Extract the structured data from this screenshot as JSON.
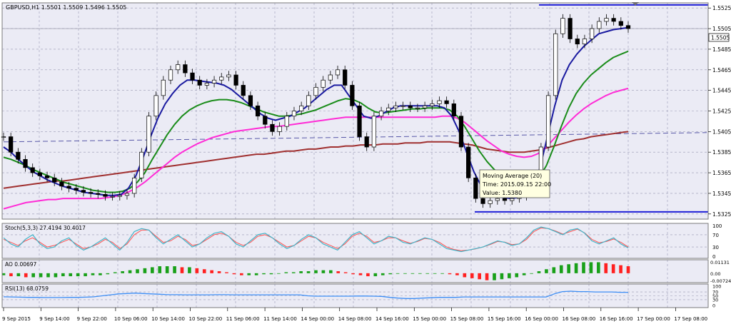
{
  "colors": {
    "background": "#ffffff",
    "plot_bg": "#ebebf5",
    "grid": "#9a9ab4",
    "candle_body": "#ffffff",
    "candle_line": "#000000",
    "ma_fast": "#1a1aa0",
    "ma_medium": "#1a8c1a",
    "ma_slow": "#ff2bd6",
    "ma_long": "#a03030",
    "support_resistance": "#1f1fd6",
    "dashed_trend": "#5858a8",
    "stoch_main": "#40b4c8",
    "stoch_signal": "#ff5050",
    "ao_up": "#19a019",
    "ao_down": "#ff2020",
    "rsi_line": "#3d8ef5",
    "text": "#000000"
  },
  "chart": {
    "symbol_label": "GBPUSD,H1  1.5501 1.5509 1.5496 1.5505",
    "current_price": "1.5505",
    "price_ticks": [
      "1.5525",
      "1.5505",
      "1.5485",
      "1.5465",
      "1.5445",
      "1.5425",
      "1.5405",
      "1.5385",
      "1.5365",
      "1.5345",
      "1.5325"
    ],
    "time_ticks": [
      "9 Sep 2015",
      "9 Sep 14:00",
      "9 Sep 22:00",
      "10 Sep 06:00",
      "10 Sep 14:00",
      "10 Sep 22:00",
      "11 Sep 06:00",
      "11 Sep 14:00",
      "14 Sep 00:00",
      "14 Sep 08:00",
      "14 Sep 16:00",
      "15 Sep 00:00",
      "15 Sep 08:00",
      "15 Sep 16:00",
      "16 Sep 00:00",
      "16 Sep 08:00",
      "16 Sep 16:00",
      "17 Sep 00:00",
      "17 Sep 08:00"
    ],
    "tooltip": {
      "title": "Moving Average (20)",
      "time": "Time: 2015.09.15 22:00",
      "value": "Value: 1.5380"
    }
  },
  "stoch": {
    "label": "Stoch(5,3,3) 27.4194 30.4017",
    "levels": [
      "100",
      "70",
      "30",
      "0"
    ]
  },
  "ao": {
    "label": "AO 0.00697",
    "levels": [
      "0.01131",
      "0.00",
      "-0.00724"
    ]
  },
  "rsi": {
    "label": "RSI(13) 68.0759",
    "levels": [
      "100",
      "70",
      "50",
      "30",
      "0"
    ]
  },
  "chart_data": {
    "type": "line",
    "title": "GBPUSD,H1",
    "y_range": [
      1.532,
      1.553
    ],
    "horizontal_lines": [
      1.5528,
      1.5327
    ],
    "closes": [
      1.54,
      1.5385,
      1.5378,
      1.537,
      1.5365,
      1.5362,
      1.536,
      1.5356,
      1.5352,
      1.535,
      1.5348,
      1.5346,
      1.5345,
      1.5344,
      1.5342,
      1.5342,
      1.5343,
      1.5345,
      1.536,
      1.5385,
      1.542,
      1.544,
      1.5455,
      1.5465,
      1.547,
      1.5462,
      1.5455,
      1.545,
      1.5452,
      1.5455,
      1.5458,
      1.546,
      1.545,
      1.544,
      1.543,
      1.542,
      1.5412,
      1.5405,
      1.541,
      1.542,
      1.5425,
      1.543,
      1.544,
      1.5448,
      1.5455,
      1.546,
      1.5465,
      1.545,
      1.543,
      1.54,
      1.539,
      1.542,
      1.5425,
      1.5428,
      1.543,
      1.543,
      1.5428,
      1.5428,
      1.543,
      1.5432,
      1.5435,
      1.5432,
      1.542,
      1.539,
      1.536,
      1.534,
      1.5335,
      1.5338,
      1.534,
      1.5338,
      1.534,
      1.5342,
      1.5345,
      1.5347,
      1.539,
      1.544,
      1.55,
      1.5515,
      1.5495,
      1.549,
      1.5495,
      1.5505,
      1.5512,
      1.5515,
      1.5512,
      1.5508,
      1.5505
    ],
    "ma_fast": [
      1.539,
      1.5385,
      1.5378,
      1.5372,
      1.5366,
      1.5362,
      1.5358,
      1.5355,
      1.5352,
      1.535,
      1.5348,
      1.5346,
      1.5345,
      1.5344,
      1.5343,
      1.5343,
      1.5344,
      1.535,
      1.5362,
      1.538,
      1.54,
      1.5418,
      1.5432,
      1.5442,
      1.545,
      1.5455,
      1.5455,
      1.5454,
      1.5453,
      1.5452,
      1.545,
      1.5446,
      1.544,
      1.5434,
      1.5428,
      1.5422,
      1.5418,
      1.5416,
      1.5418,
      1.542,
      1.5424,
      1.5428,
      1.5434,
      1.544,
      1.5446,
      1.545,
      1.545,
      1.544,
      1.543,
      1.542,
      1.5418,
      1.542,
      1.5424,
      1.5428,
      1.543,
      1.543,
      1.543,
      1.543,
      1.543,
      1.543,
      1.5428,
      1.542,
      1.5405,
      1.5385,
      1.5366,
      1.5352,
      1.5345,
      1.5342,
      1.5341,
      1.534,
      1.5341,
      1.5342,
      1.535,
      1.537,
      1.54,
      1.543,
      1.5455,
      1.547,
      1.548,
      1.5488,
      1.5494,
      1.55,
      1.5502,
      1.5504,
      1.5505,
      1.5506
    ],
    "ma_medium": [
      1.538,
      1.5378,
      1.5375,
      1.5372,
      1.5368,
      1.5365,
      1.5362,
      1.5359,
      1.5356,
      1.5354,
      1.5352,
      1.535,
      1.5348,
      1.5347,
      1.5346,
      1.5346,
      1.5347,
      1.535,
      1.5356,
      1.5365,
      1.5378,
      1.539,
      1.5402,
      1.5412,
      1.542,
      1.5426,
      1.543,
      1.5433,
      1.5435,
      1.5436,
      1.5436,
      1.5435,
      1.5433,
      1.543,
      1.5427,
      1.5424,
      1.5422,
      1.542,
      1.542,
      1.5421,
      1.5422,
      1.5424,
      1.5426,
      1.5429,
      1.5432,
      1.5435,
      1.5437,
      1.5436,
      1.5433,
      1.5428,
      1.5424,
      1.5423,
      1.5424,
      1.5425,
      1.5426,
      1.5427,
      1.5427,
      1.5428,
      1.5428,
      1.5428,
      1.5426,
      1.542,
      1.541,
      1.5398,
      1.5386,
      1.5376,
      1.5368,
      1.5362,
      1.5358,
      1.5355,
      1.5354,
      1.5355,
      1.536,
      1.5372,
      1.539,
      1.541,
      1.5428,
      1.5442,
      1.5452,
      1.546,
      1.5466,
      1.5472,
      1.5477,
      1.548,
      1.5483
    ],
    "ma_slow": [
      1.533,
      1.5332,
      1.5334,
      1.5336,
      1.5337,
      1.5338,
      1.5339,
      1.5339,
      1.534,
      1.534,
      1.534,
      1.534,
      1.534,
      1.534,
      1.5341,
      1.5342,
      1.5344,
      1.5347,
      1.5351,
      1.5356,
      1.5362,
      1.5368,
      1.5374,
      1.538,
      1.5385,
      1.5389,
      1.5393,
      1.5396,
      1.5399,
      1.5401,
      1.5403,
      1.5405,
      1.5406,
      1.5407,
      1.5408,
      1.5409,
      1.541,
      1.541,
      1.5411,
      1.5412,
      1.5413,
      1.5414,
      1.5415,
      1.5416,
      1.5417,
      1.5418,
      1.5419,
      1.5419,
      1.5419,
      1.5419,
      1.5419,
      1.5419,
      1.5419,
      1.5419,
      1.5419,
      1.5419,
      1.5419,
      1.5419,
      1.5419,
      1.542,
      1.542,
      1.5418,
      1.5414,
      1.5408,
      1.5402,
      1.5396,
      1.5391,
      1.5386,
      1.5383,
      1.5381,
      1.538,
      1.5381,
      1.5384,
      1.539,
      1.5398,
      1.5406,
      1.5414,
      1.5421,
      1.5427,
      1.5432,
      1.5436,
      1.544,
      1.5443,
      1.5445,
      1.5447
    ],
    "ma_long": [
      1.535,
      1.5351,
      1.5352,
      1.5353,
      1.5354,
      1.5355,
      1.5356,
      1.5357,
      1.5357,
      1.5358,
      1.5359,
      1.536,
      1.5361,
      1.5362,
      1.5363,
      1.5364,
      1.5365,
      1.5366,
      1.5367,
      1.5368,
      1.5369,
      1.537,
      1.5371,
      1.5372,
      1.5373,
      1.5374,
      1.5375,
      1.5376,
      1.5377,
      1.5378,
      1.5379,
      1.538,
      1.5381,
      1.5382,
      1.5383,
      1.5383,
      1.5384,
      1.5385,
      1.5386,
      1.5386,
      1.5387,
      1.5388,
      1.5388,
      1.5389,
      1.539,
      1.539,
      1.5391,
      1.5391,
      1.5392,
      1.5392,
      1.5392,
      1.5393,
      1.5393,
      1.5393,
      1.5394,
      1.5394,
      1.5394,
      1.5395,
      1.5395,
      1.5395,
      1.5395,
      1.5394,
      1.5393,
      1.5392,
      1.539,
      1.5388,
      1.5387,
      1.5386,
      1.5385,
      1.5385,
      1.5385,
      1.5386,
      1.5387,
      1.5389,
      1.5391,
      1.5393,
      1.5395,
      1.5397,
      1.5398,
      1.54,
      1.5401,
      1.5402,
      1.5403,
      1.5404,
      1.5405
    ],
    "stoch_main": [
      60,
      40,
      30,
      55,
      70,
      40,
      25,
      30,
      50,
      60,
      35,
      20,
      30,
      45,
      60,
      40,
      20,
      45,
      80,
      90,
      85,
      60,
      40,
      55,
      70,
      50,
      30,
      40,
      60,
      75,
      80,
      65,
      40,
      30,
      50,
      70,
      75,
      60,
      40,
      25,
      35,
      55,
      70,
      60,
      40,
      30,
      20,
      45,
      70,
      80,
      60,
      40,
      50,
      65,
      60,
      45,
      40,
      50,
      60,
      55,
      40,
      25,
      20,
      15,
      20,
      25,
      30,
      40,
      50,
      45,
      35,
      40,
      60,
      85,
      95,
      90,
      80,
      70,
      85,
      90,
      75,
      50,
      40,
      50,
      60,
      40,
      27
    ],
    "stoch_signal": [
      55,
      45,
      35,
      50,
      60,
      45,
      30,
      35,
      45,
      55,
      40,
      25,
      30,
      40,
      55,
      45,
      25,
      40,
      70,
      85,
      85,
      65,
      45,
      50,
      65,
      55,
      35,
      40,
      55,
      70,
      75,
      65,
      45,
      35,
      45,
      65,
      70,
      60,
      45,
      30,
      35,
      50,
      65,
      60,
      45,
      35,
      25,
      40,
      65,
      75,
      65,
      45,
      50,
      60,
      60,
      50,
      42,
      48,
      58,
      55,
      45,
      30,
      22,
      18,
      20,
      24,
      30,
      38,
      48,
      46,
      38,
      40,
      55,
      80,
      92,
      90,
      82,
      72,
      80,
      88,
      76,
      55,
      44,
      48,
      56,
      45,
      30
    ],
    "ao": [
      -0.002,
      -0.003,
      -0.003,
      -0.004,
      -0.004,
      -0.004,
      -0.004,
      -0.004,
      -0.003,
      -0.003,
      -0.003,
      -0.003,
      -0.002,
      -0.002,
      -0.001,
      0.001,
      0.002,
      0.003,
      0.004,
      0.005,
      0.006,
      0.007,
      0.007,
      0.007,
      0.006,
      0.006,
      0.005,
      0.004,
      0.003,
      0.002,
      0.001,
      -0.001,
      -0.002,
      -0.002,
      -0.002,
      -0.001,
      -0.001,
      0.0,
      0.001,
      0.001,
      0.002,
      0.002,
      0.003,
      0.003,
      0.003,
      0.002,
      0.001,
      -0.001,
      -0.002,
      -0.003,
      -0.003,
      -0.002,
      -0.001,
      0.0,
      0.0,
      0.0,
      0.0,
      0.0,
      0.0,
      0.0,
      -0.001,
      -0.002,
      -0.004,
      -0.005,
      -0.006,
      -0.007,
      -0.007,
      -0.006,
      -0.005,
      -0.004,
      -0.002,
      0.0,
      0.002,
      0.004,
      0.006,
      0.008,
      0.009,
      0.01,
      0.011,
      0.011,
      0.011,
      0.01,
      0.009,
      0.008,
      0.007
    ],
    "rsi": [
      45,
      44,
      43,
      42,
      42,
      41,
      41,
      41,
      42,
      42,
      43,
      45,
      50,
      55,
      60,
      62,
      64,
      62,
      60,
      58,
      56,
      56,
      55,
      55,
      55,
      55,
      56,
      56,
      55,
      55,
      55,
      55,
      55,
      55,
      55,
      55,
      55,
      50,
      48,
      48,
      48,
      48,
      48,
      49,
      49,
      48,
      47,
      42,
      38,
      36,
      36,
      38,
      40,
      42,
      42,
      42,
      44,
      44,
      44,
      44,
      44,
      44,
      44,
      44,
      44,
      44,
      44,
      60,
      72,
      74,
      72,
      72,
      70,
      70,
      70,
      68,
      68
    ]
  }
}
